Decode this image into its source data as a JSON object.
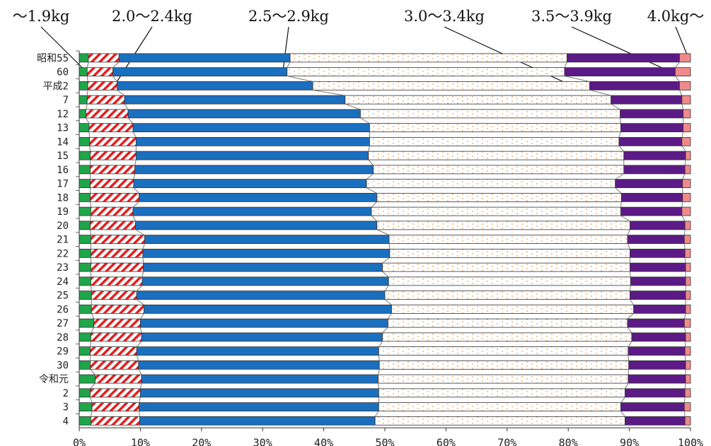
{
  "chart_data": {
    "type": "bar",
    "orientation": "horizontal",
    "stacked": "percent",
    "categories": [
      "昭和55",
      "60",
      "平成2",
      "7",
      "12",
      "13",
      "14",
      "15",
      "16",
      "17",
      "18",
      "19",
      "20",
      "21",
      "22",
      "23",
      "24",
      "25",
      "26",
      "27",
      "28",
      "29",
      "30",
      "令和元",
      "2",
      "3",
      "4"
    ],
    "series": [
      {
        "name": "～1.9kg",
        "color": "#1fa64a",
        "values": [
          1.5,
          1.3,
          1.4,
          1.3,
          1.1,
          1.6,
          1.7,
          1.8,
          1.8,
          1.8,
          1.8,
          1.9,
          1.8,
          1.9,
          1.9,
          1.9,
          1.9,
          2.0,
          2.0,
          2.4,
          1.9,
          1.8,
          1.8,
          2.6,
          1.8,
          2.1,
          1.9
        ]
      },
      {
        "name": "2.0～2.4kg",
        "color": "#e02020",
        "values": [
          5.0,
          4.2,
          4.8,
          6.1,
          6.9,
          7.2,
          7.6,
          7.5,
          7.3,
          7.1,
          8.0,
          6.9,
          7.4,
          8.8,
          8.5,
          8.6,
          8.4,
          7.4,
          8.6,
          7.6,
          8.3,
          7.6,
          7.9,
          7.6,
          8.2,
          7.7,
          8.0
        ]
      },
      {
        "name": "2.5～2.9kg",
        "color": "#1a6fbf",
        "values": [
          28.0,
          28.5,
          32.0,
          36.1,
          38.0,
          38.7,
          38.2,
          38.0,
          39.0,
          38.1,
          38.9,
          39.0,
          39.5,
          40.0,
          40.4,
          39.1,
          40.3,
          40.6,
          40.5,
          40.5,
          39.4,
          39.6,
          39.4,
          38.7,
          39.0,
          39.2,
          38.5
        ]
      },
      {
        "name": "3.0～3.4kg",
        "color": "#f5ecd8",
        "values": [
          45.3,
          45.4,
          45.3,
          43.5,
          42.5,
          41.1,
          40.8,
          41.8,
          41.0,
          40.7,
          40.0,
          40.8,
          41.4,
          39.0,
          39.3,
          40.5,
          39.6,
          40.1,
          39.6,
          39.2,
          40.8,
          40.8,
          40.8,
          40.9,
          40.3,
          39.6,
          40.9
        ]
      },
      {
        "name": "3.5～3.9kg",
        "color": "#5c1a86",
        "values": [
          18.4,
          18.1,
          14.7,
          11.6,
          10.3,
          10.2,
          10.3,
          10.1,
          10.0,
          11.0,
          10.0,
          10.0,
          9.0,
          9.3,
          9.0,
          9.1,
          9.0,
          9.1,
          8.5,
          9.3,
          8.8,
          9.3,
          9.3,
          9.4,
          9.8,
          10.4,
          9.8
        ]
      },
      {
        "name": "4.0kg～",
        "color": "#f08a8a",
        "values": [
          1.8,
          2.5,
          1.8,
          1.4,
          1.2,
          1.2,
          1.4,
          0.8,
          0.9,
          1.3,
          1.3,
          1.4,
          0.9,
          1.0,
          0.9,
          0.8,
          0.8,
          0.8,
          0.8,
          1.0,
          0.8,
          0.9,
          0.8,
          0.8,
          0.9,
          1.0,
          0.9
        ]
      }
    ],
    "xlim": [
      0,
      100
    ],
    "xticks": [
      "0%",
      "10%",
      "20%",
      "30%",
      "40%",
      "50%",
      "60%",
      "70%",
      "80%",
      "90%",
      "100%"
    ],
    "grid": false,
    "legend_placement": "top, with leader lines"
  }
}
